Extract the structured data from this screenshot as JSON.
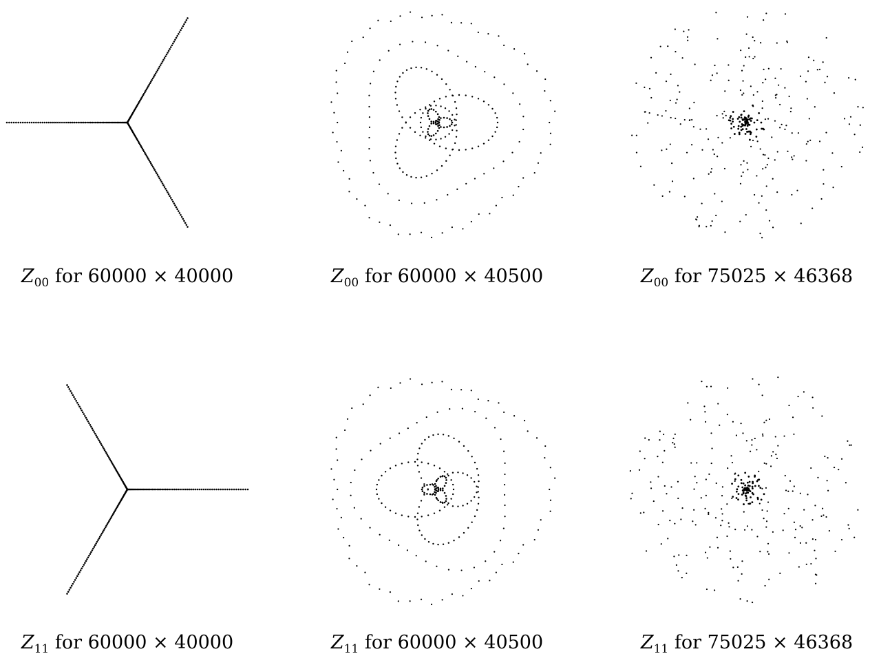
{
  "panels": [
    {
      "letter": "Z",
      "sub": "00",
      "text": "for 60000 × 40000",
      "pattern": "star",
      "orientation": "left-ray"
    },
    {
      "letter": "Z",
      "sub": "00",
      "text": "for 60000 × 40500",
      "pattern": "trefoil"
    },
    {
      "letter": "Z",
      "sub": "00",
      "text": "for 75025 × 46368",
      "pattern": "scatter"
    },
    {
      "letter": "Z",
      "sub": "11",
      "text": "for 60000 × 40000",
      "pattern": "star",
      "orientation": "right-ray"
    },
    {
      "letter": "Z",
      "sub": "11",
      "text": "for 60000 × 40500",
      "pattern": "trefoil"
    },
    {
      "letter": "Z",
      "sub": "11",
      "text": "for 75025 × 46368",
      "pattern": "scatter"
    }
  ],
  "colors": {
    "dots": "#000000",
    "background": "#ffffff"
  }
}
